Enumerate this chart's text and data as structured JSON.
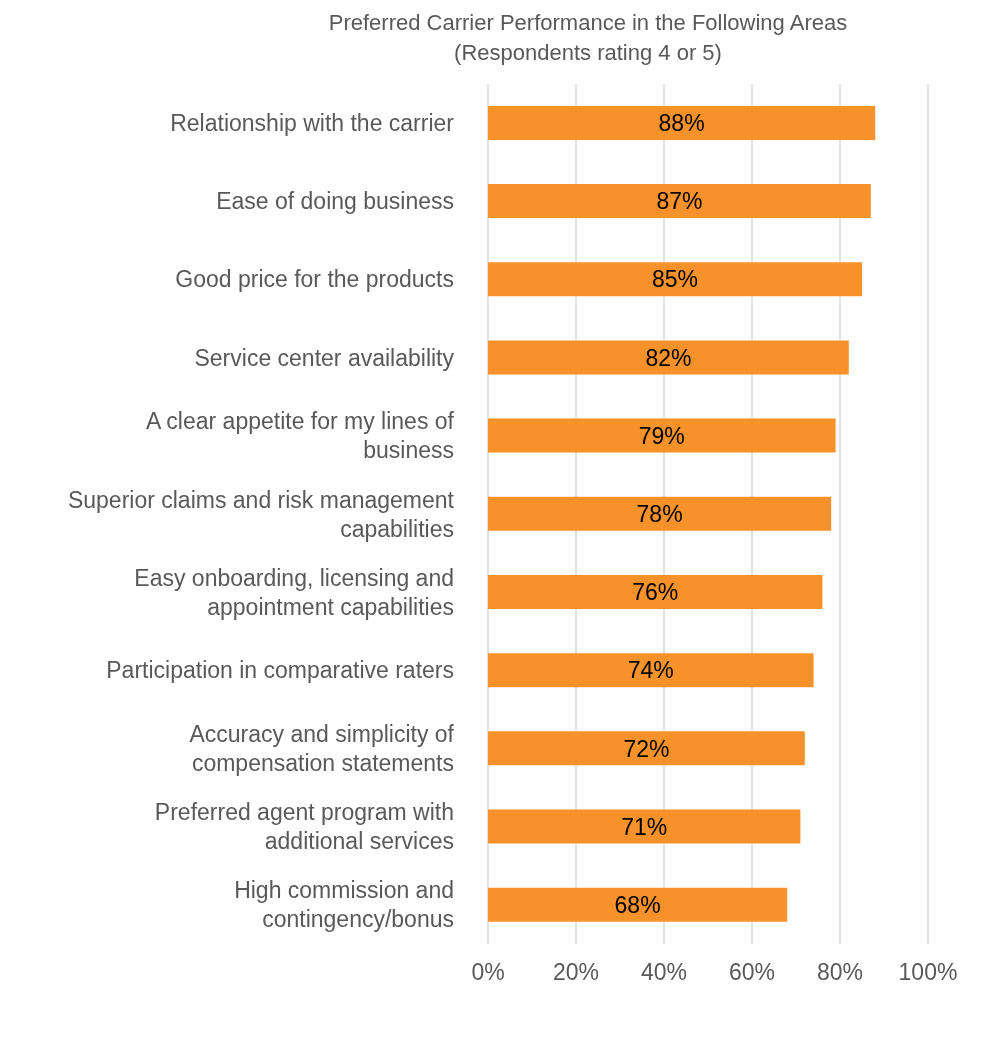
{
  "chart_data": {
    "type": "bar",
    "orientation": "horizontal",
    "title": "Preferred Carrier Performance in the Following Areas",
    "subtitle": "(Respondents rating 4 or 5)",
    "categories": [
      "Relationship with the carrier",
      "Ease of doing business",
      "Good price for the products",
      "Service center availability",
      "A clear appetite for my lines of business",
      "Superior claims and risk management capabilities",
      "Easy onboarding, licensing and appointment capabilities",
      "Participation in comparative raters",
      "Accuracy and simplicity of compensation statements",
      "Preferred agent program with additional services",
      "High commission and contingency/bonus"
    ],
    "values": [
      88,
      87,
      85,
      82,
      79,
      78,
      76,
      74,
      72,
      71,
      68
    ],
    "value_labels": [
      "88%",
      "87%",
      "85%",
      "82%",
      "79%",
      "78%",
      "76%",
      "74%",
      "72%",
      "71%",
      "68%"
    ],
    "color": "#f7922a",
    "xlim": [
      0,
      100
    ],
    "xticks": [
      {
        "value": 0,
        "label": "0%"
      },
      {
        "value": 20,
        "label": "20%"
      },
      {
        "value": 40,
        "label": "40%"
      },
      {
        "value": 60,
        "label": "60%"
      },
      {
        "value": 80,
        "label": "80%"
      },
      {
        "value": 100,
        "label": "100%"
      }
    ],
    "grid": "x"
  }
}
